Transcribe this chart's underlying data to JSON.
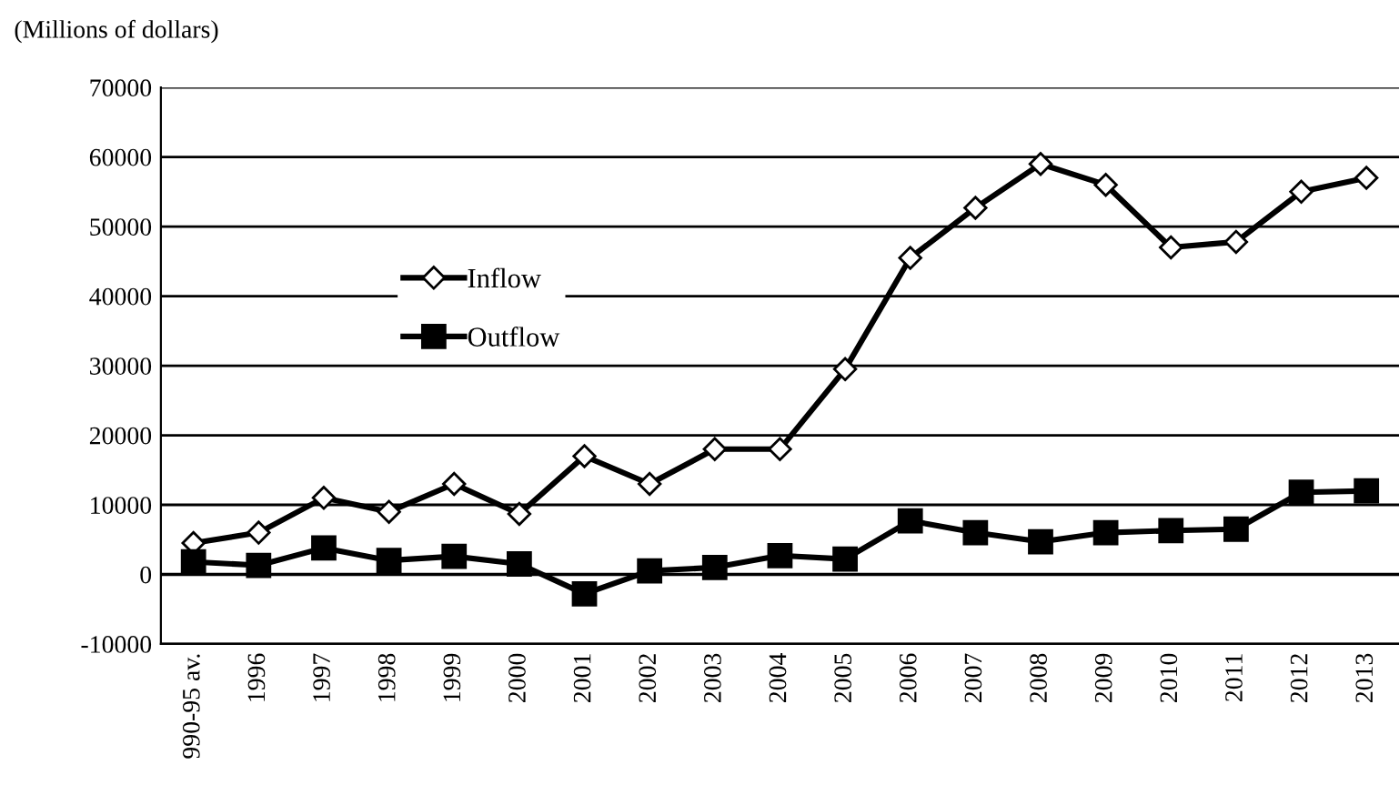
{
  "chart_data": {
    "type": "line",
    "ylabel": "(Millions of dollars)",
    "categories": [
      "990-95 av.",
      "1996",
      "1997",
      "1998",
      "1999",
      "2000",
      "2001",
      "2002",
      "2003",
      "2004",
      "2005",
      "2006",
      "2007",
      "2008",
      "2009",
      "2010",
      "2011",
      "2012",
      "2013"
    ],
    "series": [
      {
        "name": "Inflow",
        "color": "#000000",
        "marker": "diamond",
        "values": [
          4500,
          6000,
          11000,
          9000,
          13000,
          8700,
          17000,
          13000,
          18000,
          18000,
          29500,
          45500,
          52700,
          59000,
          56000,
          47000,
          47800,
          55000,
          57000
        ]
      },
      {
        "name": "Outflow",
        "color": "#000000",
        "marker": "square",
        "values": [
          1800,
          1300,
          3800,
          2000,
          2600,
          1500,
          -2800,
          500,
          1000,
          2700,
          2200,
          7700,
          6000,
          4700,
          6000,
          6300,
          6500,
          11800,
          12000
        ]
      }
    ],
    "ylim": [
      -10000,
      70000
    ],
    "yticks": [
      -10000,
      0,
      10000,
      20000,
      30000,
      40000,
      50000,
      60000,
      70000
    ],
    "grid": "y",
    "legend": "left",
    "line_style": "solid"
  }
}
